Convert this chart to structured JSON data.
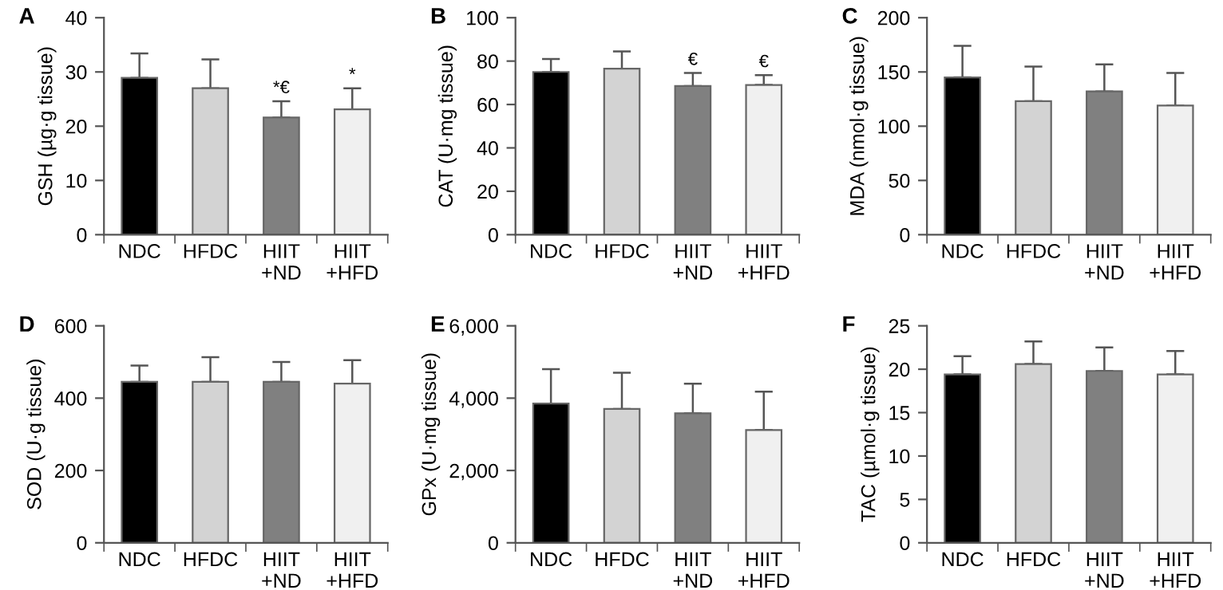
{
  "chart_data": [
    {
      "type": "bar",
      "title": "A",
      "ylabel": "GSH (µg·g tissue)",
      "categories": [
        "NDC",
        "HFDC",
        "HIIT\n+ND",
        "HIIT\n+HFD"
      ],
      "values": [
        28.9,
        27.0,
        21.6,
        23.1
      ],
      "errors": [
        [
          28.9,
          33.4
        ],
        [
          27.0,
          32.3
        ],
        [
          21.6,
          24.6
        ],
        [
          23.1,
          27.0
        ]
      ],
      "colors": [
        "#000000",
        "#d3d3d3",
        "#808080",
        "#f0f0f0"
      ],
      "ylim": [
        0,
        40
      ],
      "yticks": [
        0,
        10,
        20,
        30,
        40
      ],
      "annotations": [
        {
          "text": "*€",
          "x": "HIIT\n+ND",
          "y": 24.6
        },
        {
          "text": "*",
          "x": "HIIT\n+HFD",
          "y": 27.0
        }
      ]
    },
    {
      "type": "bar",
      "title": "B",
      "ylabel": "CAT (U·mg tissue)",
      "categories": [
        "NDC",
        "HFDC",
        "HIIT\n+ND",
        "HIIT\n+HFD"
      ],
      "values": [
        75,
        76.5,
        68.5,
        69
      ],
      "errors": [
        [
          75,
          81
        ],
        [
          76.5,
          84.5
        ],
        [
          68.5,
          74.5
        ],
        [
          69,
          73.5
        ]
      ],
      "colors": [
        "#000000",
        "#d3d3d3",
        "#808080",
        "#f0f0f0"
      ],
      "ylim": [
        0,
        100
      ],
      "yticks": [
        0,
        20,
        40,
        60,
        80,
        100
      ],
      "annotations": [
        {
          "text": "€",
          "x": "HIIT\n+ND",
          "y": 74.5
        },
        {
          "text": "€",
          "x": "HIIT\n+HFD",
          "y": 73.5
        }
      ]
    },
    {
      "type": "bar",
      "title": "C",
      "ylabel": "MDA (nmol·g tissue)",
      "categories": [
        "NDC",
        "HFDC",
        "HIIT\n+ND",
        "HIIT\n+HFD"
      ],
      "values": [
        145,
        123,
        132,
        119
      ],
      "errors": [
        [
          145,
          174
        ],
        [
          123,
          155
        ],
        [
          132,
          157
        ],
        [
          119,
          149
        ]
      ],
      "colors": [
        "#000000",
        "#d3d3d3",
        "#808080",
        "#f0f0f0"
      ],
      "ylim": [
        0,
        200
      ],
      "yticks": [
        0,
        50,
        100,
        150,
        200
      ]
    },
    {
      "type": "bar",
      "title": "D",
      "ylabel": "SOD (U·g tissue)",
      "categories": [
        "NDC",
        "HFDC",
        "HIIT\n+ND",
        "HIIT\n+HFD"
      ],
      "values": [
        445,
        445,
        445,
        440
      ],
      "errors": [
        [
          445,
          490
        ],
        [
          445,
          513
        ],
        [
          445,
          500
        ],
        [
          440,
          505
        ]
      ],
      "colors": [
        "#000000",
        "#d3d3d3",
        "#808080",
        "#f0f0f0"
      ],
      "ylim": [
        0,
        600
      ],
      "yticks": [
        0,
        200,
        400,
        600
      ]
    },
    {
      "type": "bar",
      "title": "E",
      "ylabel": "GPx (U·mg tissue)",
      "categories": [
        "NDC",
        "HFDC",
        "HIIT\n+ND",
        "HIIT\n+HFD"
      ],
      "values": [
        3850,
        3700,
        3580,
        3120
      ],
      "errors": [
        [
          3850,
          4800
        ],
        [
          3700,
          4700
        ],
        [
          3580,
          4400
        ],
        [
          3120,
          4180
        ]
      ],
      "colors": [
        "#000000",
        "#d3d3d3",
        "#808080",
        "#f0f0f0"
      ],
      "ylim": [
        0,
        6000
      ],
      "yticks": [
        0,
        {
          "value": 2000,
          "label": "2,000"
        },
        {
          "value": 4000,
          "label": "4,000"
        },
        {
          "value": 6000,
          "label": "6,000"
        }
      ]
    },
    {
      "type": "bar",
      "title": "F",
      "ylabel": "TAC (µmol·g tissue)",
      "categories": [
        "NDC",
        "HFDC",
        "HIIT\n+ND",
        "HIIT\n+HFD"
      ],
      "values": [
        19.4,
        20.6,
        19.8,
        19.4
      ],
      "errors": [
        [
          19.4,
          21.5
        ],
        [
          20.6,
          23.2
        ],
        [
          19.8,
          22.5
        ],
        [
          19.4,
          22.1
        ]
      ],
      "colors": [
        "#000000",
        "#d3d3d3",
        "#808080",
        "#f0f0f0"
      ],
      "ylim": [
        0,
        25
      ],
      "yticks": [
        0,
        5,
        10,
        15,
        20,
        25
      ]
    }
  ]
}
